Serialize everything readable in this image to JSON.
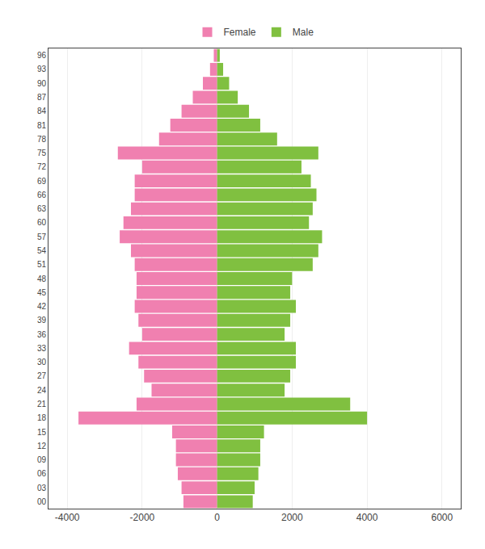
{
  "chart_data": {
    "type": "bar",
    "orientation": "horizontal",
    "categories": [
      "00",
      "03",
      "06",
      "09",
      "12",
      "15",
      "18",
      "21",
      "24",
      "27",
      "30",
      "33",
      "36",
      "39",
      "42",
      "45",
      "48",
      "51",
      "54",
      "57",
      "60",
      "63",
      "66",
      "69",
      "72",
      "75",
      "78",
      "81",
      "84",
      "87",
      "90",
      "93",
      "96"
    ],
    "series": [
      {
        "name": "Female",
        "color": "#f080b0",
        "values": [
          -900,
          -950,
          -1050,
          -1100,
          -1100,
          -1200,
          -3700,
          -2150,
          -1750,
          -1950,
          -2100,
          -2350,
          -2000,
          -2100,
          -2200,
          -2150,
          -2150,
          -2200,
          -2300,
          -2600,
          -2500,
          -2300,
          -2200,
          -2200,
          -2000,
          -2650,
          -1550,
          -1250,
          -950,
          -650,
          -380,
          -190,
          -90
        ]
      },
      {
        "name": "Male",
        "color": "#80c040",
        "values": [
          950,
          1000,
          1100,
          1150,
          1150,
          1250,
          4000,
          3550,
          1800,
          1950,
          2100,
          2100,
          1800,
          1950,
          2100,
          1950,
          2000,
          2550,
          2700,
          2800,
          2450,
          2550,
          2650,
          2500,
          2250,
          2700,
          1600,
          1150,
          850,
          550,
          320,
          160,
          70
        ]
      }
    ],
    "xlim": [
      -4500,
      6500
    ],
    "xticks": [
      -4000,
      -2000,
      0,
      2000,
      4000,
      6000
    ],
    "grid": true,
    "legend": "top"
  }
}
